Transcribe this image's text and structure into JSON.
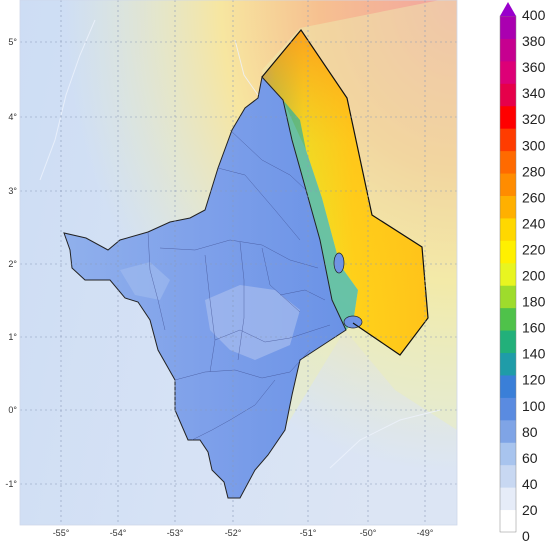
{
  "map": {
    "lon_ticks": [
      "-55°",
      "-54°",
      "-53°",
      "-52°",
      "-51°",
      "-50°",
      "-49°"
    ],
    "lat_ticks": [
      "5°",
      "4°",
      "3°",
      "2°",
      "1°",
      "0°",
      "-1°"
    ]
  },
  "colorbar": {
    "labels": [
      "400",
      "380",
      "360",
      "340",
      "320",
      "300",
      "280",
      "260",
      "240",
      "220",
      "200",
      "180",
      "160",
      "140",
      "120",
      "100",
      "80",
      "60",
      "40",
      "20",
      "0"
    ],
    "colors": [
      "#ffffff",
      "#e6ecf8",
      "#c8d8f2",
      "#a8c4ee",
      "#7fa4e6",
      "#5a8be0",
      "#3a7fd8",
      "#1f9ca8",
      "#22b07a",
      "#4fc24a",
      "#9edc2c",
      "#e8f520",
      "#fff000",
      "#ffd800",
      "#ffb000",
      "#ff8c00",
      "#ff6a00",
      "#ff3c00",
      "#ff0000",
      "#e6004a",
      "#dd0077",
      "#c60090",
      "#aa00b0"
    ],
    "arrow_color": "#9900cc"
  }
}
